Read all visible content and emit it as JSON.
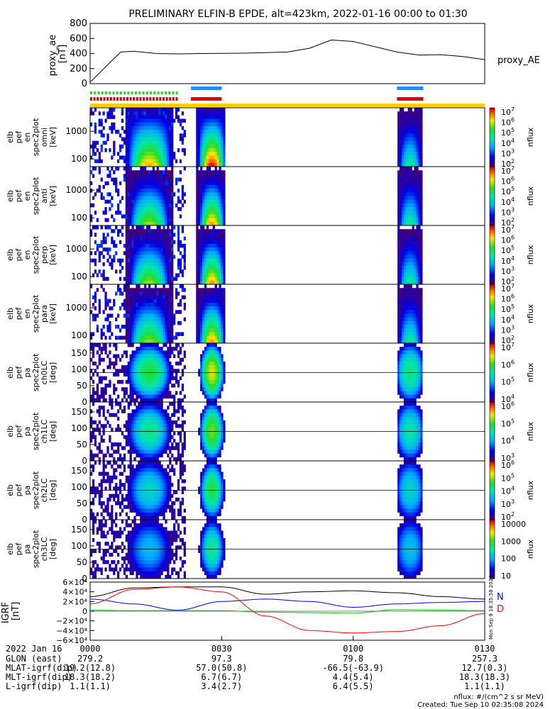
{
  "title": "PRELIMINARY ELFIN-B EPDE, alt=423km, 2022-01-16 00:00 to 01:30",
  "proxy_ae": {
    "ylabel_lines": [
      "proxy_ae",
      "[nT]"
    ],
    "legend": "proxy_AE",
    "yticks": [
      "800",
      "600",
      "400",
      "200",
      "0"
    ],
    "ylim": [
      0,
      800
    ],
    "x_min": [
      0,
      4,
      7,
      10,
      15,
      20,
      25,
      35,
      45,
      50,
      55,
      60,
      70,
      75,
      80,
      85,
      90
    ],
    "values": [
      20,
      250,
      420,
      430,
      400,
      395,
      400,
      405,
      420,
      470,
      580,
      560,
      420,
      380,
      385,
      360,
      320
    ]
  },
  "science_zones": {
    "blue": [
      [
        23,
        30
      ],
      [
        70,
        76
      ]
    ],
    "red": [
      [
        23,
        30
      ],
      [
        70,
        76
      ]
    ],
    "green_dashed": [
      0,
      20
    ],
    "red_dashed": [
      0,
      20
    ]
  },
  "spectrogram_panels": [
    {
      "labels": [
        "elb",
        "pef",
        "en",
        "spec2plot",
        "omni",
        "[keV]"
      ],
      "yticks": [
        "1000",
        "100"
      ],
      "cticks": [
        "10",
        "10",
        "10",
        "10",
        "10",
        "10"
      ],
      "cexp": [
        "7",
        "6",
        "5",
        "4",
        "3",
        "2"
      ],
      "ctitle": "nflux"
    },
    {
      "labels": [
        "elb",
        "pef",
        "en",
        "spec2plot",
        "anti",
        "[keV]"
      ],
      "yticks": [
        "1000",
        "100"
      ],
      "cticks": [
        "10",
        "10",
        "10",
        "10",
        "10",
        "10"
      ],
      "cexp": [
        "7",
        "6",
        "5",
        "4",
        "3",
        "2"
      ],
      "ctitle": "nflux"
    },
    {
      "labels": [
        "elb",
        "pef",
        "en",
        "spec2plot",
        "perp",
        "[keV]"
      ],
      "yticks": [
        "1000",
        "100"
      ],
      "cticks": [
        "10",
        "10",
        "10",
        "10",
        "10",
        "10"
      ],
      "cexp": [
        "7",
        "6",
        "5",
        "4",
        "3",
        "2"
      ],
      "ctitle": "nflux"
    },
    {
      "labels": [
        "elb",
        "pef",
        "en",
        "spec2plot",
        "para",
        "[keV]"
      ],
      "yticks": [
        "1000",
        "100"
      ],
      "cticks": [
        "10",
        "10",
        "10",
        "10",
        "10",
        "10"
      ],
      "cexp": [
        "7",
        "6",
        "5",
        "4",
        "3",
        "2"
      ],
      "ctitle": "nflux"
    }
  ],
  "pitch_panels": [
    {
      "labels": [
        "elb",
        "pef",
        "pa",
        "spec2plot",
        "ch0LC",
        "[deg]"
      ],
      "yticks": [
        "150",
        "100",
        "50",
        "0"
      ],
      "cticks": [
        "10",
        "10",
        "10",
        "10"
      ],
      "cexp": [
        "7",
        "6",
        "5",
        "4"
      ],
      "ctitle": "nflux"
    },
    {
      "labels": [
        "elb",
        "pef",
        "pa",
        "spec2plot",
        "ch1LC",
        "[deg]"
      ],
      "yticks": [
        "150",
        "100",
        "50",
        "0"
      ],
      "cticks": [
        "10",
        "10",
        "10",
        "10"
      ],
      "cexp": [
        "6",
        "5",
        "4",
        "3"
      ],
      "ctitle": "nflux"
    },
    {
      "labels": [
        "elb",
        "pef",
        "pa",
        "spec2plot",
        "ch2LC",
        "[deg]"
      ],
      "yticks": [
        "150",
        "100",
        "50",
        "0"
      ],
      "cticks": [
        "10",
        "10",
        "10",
        "10",
        "10"
      ],
      "cexp": [
        "6",
        "5",
        "4",
        "3",
        "2"
      ],
      "ctitle": "nflux"
    },
    {
      "labels": [
        "elb",
        "pef",
        "pa",
        "spec2plot",
        "ch3LC",
        "[deg]"
      ],
      "yticks": [
        "150",
        "100",
        "50",
        "0"
      ],
      "cticks": [
        "10000",
        "1000",
        "100",
        "10"
      ],
      "cexp": [
        "",
        "",
        "",
        ""
      ],
      "ctitle": "nflux"
    }
  ],
  "igrf": {
    "ylabel_lines": [
      "IGRF",
      "[nT]"
    ],
    "yticks": [
      "6×10⁴",
      "4×10⁴",
      "2×10⁴",
      "0",
      "−2×10⁴",
      "−4×10⁴",
      "−6×10⁴"
    ],
    "legend": [
      "N",
      "D"
    ],
    "legend_colors": [
      "#0000ff",
      "#ff0000"
    ],
    "vertical_note": "Mon Sep  9 18:35:58 2024"
  },
  "chart_data": [
    {
      "type": "line",
      "title": "PRELIMINARY ELFIN-B EPDE, alt=423km, 2022-01-16 00:00 to 01:30",
      "ylabel": "proxy_ae [nT]",
      "ylim": [
        0,
        800
      ],
      "series": [
        {
          "name": "proxy_AE",
          "x": [
            "00:00",
            "00:04",
            "00:07",
            "00:10",
            "00:15",
            "00:20",
            "00:25",
            "00:35",
            "00:45",
            "00:50",
            "00:55",
            "01:00",
            "01:10",
            "01:15",
            "01:20",
            "01:25",
            "01:30"
          ],
          "values": [
            20,
            250,
            420,
            430,
            400,
            395,
            400,
            405,
            420,
            470,
            580,
            560,
            420,
            380,
            385,
            360,
            320
          ]
        }
      ]
    },
    {
      "type": "heatmap",
      "panels": [
        "omni",
        "anti",
        "perp",
        "para"
      ],
      "ylabel": "[keV]",
      "yscale": "log",
      "colorbar": "nflux",
      "clim": [
        100,
        10000000
      ]
    },
    {
      "type": "heatmap",
      "panels": [
        "ch0LC",
        "ch1LC",
        "ch2LC",
        "ch3LC"
      ],
      "ylabel": "[deg]",
      "ylim": [
        0,
        180
      ],
      "colorbar": "nflux"
    },
    {
      "type": "line",
      "ylabel": "IGRF [nT]",
      "ylim": [
        -60000,
        60000
      ],
      "series": [
        {
          "color": "#000000",
          "x_min": [
            0,
            10,
            20,
            30,
            40,
            50,
            60,
            70,
            80,
            90
          ],
          "values": [
            30000,
            48000,
            50000,
            50000,
            35000,
            40000,
            42000,
            38000,
            30000,
            25000
          ]
        },
        {
          "name": "N",
          "color": "#0000ff",
          "x_min": [
            0,
            10,
            20,
            30,
            40,
            50,
            60,
            70,
            80,
            90
          ],
          "values": [
            25000,
            15000,
            2000,
            20000,
            25000,
            20000,
            8000,
            15000,
            18000,
            20000
          ]
        },
        {
          "name": "D",
          "color": "#ff0000",
          "x_min": [
            0,
            10,
            20,
            30,
            40,
            50,
            60,
            70,
            80,
            90
          ],
          "values": [
            15000,
            45000,
            50000,
            40000,
            -10000,
            -40000,
            -45000,
            -42000,
            -30000,
            -5000
          ]
        },
        {
          "color": "#00c000",
          "x_min": [
            0,
            10,
            20,
            30,
            40,
            50,
            60,
            70,
            80,
            90
          ],
          "values": [
            2000,
            1000,
            1000,
            1000,
            -2000,
            -3000,
            -4000,
            3000,
            2000,
            1000
          ]
        }
      ]
    }
  ],
  "ticks_table": {
    "row_labels": [
      "2022 Jan 16",
      "GLON (east)",
      "MLAT-igrf(dip)",
      "MLT-igrf(dip)",
      "L-igrf(dip)"
    ],
    "columns": [
      [
        "0000",
        "279.2",
        "19.2(12.8)",
        "18.3(18.2)",
        "1.1(1.1)"
      ],
      [
        "0030",
        "97.3",
        "57.0(50.8)",
        "6.7(6.7)",
        "3.4(2.7)"
      ],
      [
        "0100",
        "79.8",
        "-66.5(-63.9)",
        "4.4(5.4)",
        "6.4(5.5)"
      ],
      [
        "0130",
        "257.3",
        "12.7(0.3)",
        "18.3(18.3)",
        "1.1(1.1)"
      ]
    ]
  },
  "footer": {
    "units": "nflux: #/(cm^2 s sr MeV)",
    "created": "Created: Tue Sep 10 02:35:08 2024"
  }
}
